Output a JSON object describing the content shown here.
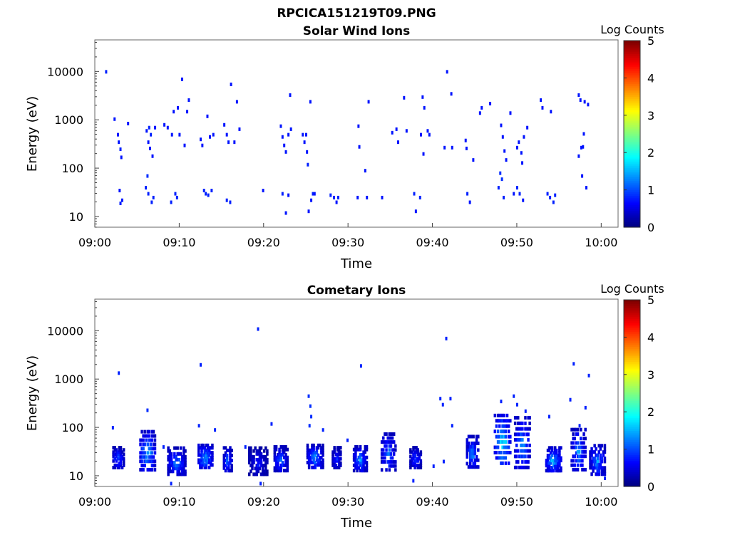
{
  "figure_title": "RPCICA151219T09.PNG",
  "chart_data": [
    {
      "type": "heatmap",
      "title": "Solar Wind Ions",
      "xlabel": "Time",
      "ylabel": "Energy (eV)",
      "yscale": "log",
      "ylim": [
        6,
        45000
      ],
      "xlim": [
        "09:00",
        "10:02"
      ],
      "x_ticks": [
        "09:00",
        "09:10",
        "09:20",
        "09:30",
        "09:40",
        "09:50",
        "10:00"
      ],
      "y_ticks": [
        "10",
        "100",
        "1000",
        "10000"
      ],
      "grid": false,
      "colorbar": {
        "label": "Log Counts",
        "range": [
          0,
          5
        ],
        "ticks": [
          "0",
          "1",
          "2",
          "3",
          "4",
          "5"
        ],
        "colormap": "jet"
      },
      "points": [
        {
          "t": 1.3,
          "e": 10000,
          "c": 0.3
        },
        {
          "t": 2.3,
          "e": 1050,
          "c": 0.2
        },
        {
          "t": 2.7,
          "e": 500,
          "c": 0.2
        },
        {
          "t": 2.8,
          "e": 350,
          "c": 0.2
        },
        {
          "t": 3.0,
          "e": 250,
          "c": 0.3
        },
        {
          "t": 3.1,
          "e": 170,
          "c": 0.2
        },
        {
          "t": 2.9,
          "e": 35,
          "c": 0.2
        },
        {
          "t": 3.2,
          "e": 22,
          "c": 0.2
        },
        {
          "t": 3.0,
          "e": 19,
          "c": 0.3
        },
        {
          "t": 3.9,
          "e": 850,
          "c": 0.2
        },
        {
          "t": 6.0,
          "e": 40,
          "c": 0.3
        },
        {
          "t": 6.2,
          "e": 70,
          "c": 0.4
        },
        {
          "t": 6.3,
          "e": 30,
          "c": 0.3
        },
        {
          "t": 6.1,
          "e": 600,
          "c": 0.2
        },
        {
          "t": 6.4,
          "e": 700,
          "c": 0.3
        },
        {
          "t": 6.6,
          "e": 500,
          "c": 0.3
        },
        {
          "t": 6.3,
          "e": 350,
          "c": 0.2
        },
        {
          "t": 6.5,
          "e": 260,
          "c": 0.2
        },
        {
          "t": 6.7,
          "e": 20,
          "c": 0.3
        },
        {
          "t": 6.9,
          "e": 25,
          "c": 0.3
        },
        {
          "t": 7.1,
          "e": 700,
          "c": 0.2
        },
        {
          "t": 6.8,
          "e": 180,
          "c": 0.2
        },
        {
          "t": 8.2,
          "e": 800,
          "c": 0.2
        },
        {
          "t": 8.6,
          "e": 700,
          "c": 0.2
        },
        {
          "t": 9.1,
          "e": 500,
          "c": 0.2
        },
        {
          "t": 9.3,
          "e": 1500,
          "c": 0.2
        },
        {
          "t": 9.8,
          "e": 1800,
          "c": 0.2
        },
        {
          "t": 10.0,
          "e": 500,
          "c": 0.2
        },
        {
          "t": 10.6,
          "e": 300,
          "c": 0.2
        },
        {
          "t": 9.0,
          "e": 20,
          "c": 0.3
        },
        {
          "t": 9.5,
          "e": 30,
          "c": 0.3
        },
        {
          "t": 9.7,
          "e": 25,
          "c": 0.3
        },
        {
          "t": 10.3,
          "e": 7000,
          "c": 0.2
        },
        {
          "t": 10.9,
          "e": 1500,
          "c": 0.2
        },
        {
          "t": 11.1,
          "e": 2600,
          "c": 0.2
        },
        {
          "t": 12.5,
          "e": 400,
          "c": 0.2
        },
        {
          "t": 12.7,
          "e": 300,
          "c": 0.2
        },
        {
          "t": 12.9,
          "e": 35,
          "c": 0.3
        },
        {
          "t": 13.1,
          "e": 30,
          "c": 0.3
        },
        {
          "t": 13.4,
          "e": 28,
          "c": 0.3
        },
        {
          "t": 13.8,
          "e": 35,
          "c": 0.3
        },
        {
          "t": 13.3,
          "e": 1200,
          "c": 0.2
        },
        {
          "t": 13.6,
          "e": 450,
          "c": 0.2
        },
        {
          "t": 14.0,
          "e": 500,
          "c": 0.2
        },
        {
          "t": 15.3,
          "e": 800,
          "c": 0.2
        },
        {
          "t": 15.6,
          "e": 500,
          "c": 0.2
        },
        {
          "t": 15.8,
          "e": 350,
          "c": 0.2
        },
        {
          "t": 16.1,
          "e": 5500,
          "c": 0.2
        },
        {
          "t": 16.5,
          "e": 350,
          "c": 0.2
        },
        {
          "t": 16.8,
          "e": 2400,
          "c": 0.2
        },
        {
          "t": 15.6,
          "e": 22,
          "c": 0.3
        },
        {
          "t": 16.0,
          "e": 20,
          "c": 0.3
        },
        {
          "t": 17.1,
          "e": 650,
          "c": 0.2
        },
        {
          "t": 19.9,
          "e": 35,
          "c": 0.2
        },
        {
          "t": 22.0,
          "e": 750,
          "c": 0.2
        },
        {
          "t": 22.2,
          "e": 450,
          "c": 0.2
        },
        {
          "t": 22.4,
          "e": 300,
          "c": 0.2
        },
        {
          "t": 22.6,
          "e": 220,
          "c": 0.2
        },
        {
          "t": 22.9,
          "e": 500,
          "c": 0.2
        },
        {
          "t": 23.2,
          "e": 650,
          "c": 0.2
        },
        {
          "t": 22.2,
          "e": 30,
          "c": 0.3
        },
        {
          "t": 22.6,
          "e": 12,
          "c": 0.2
        },
        {
          "t": 22.9,
          "e": 28,
          "c": 0.2
        },
        {
          "t": 23.1,
          "e": 3300,
          "c": 0.2
        },
        {
          "t": 24.6,
          "e": 500,
          "c": 0.2
        },
        {
          "t": 24.8,
          "e": 350,
          "c": 0.2
        },
        {
          "t": 25.1,
          "e": 220,
          "c": 0.2
        },
        {
          "t": 25.2,
          "e": 120,
          "c": 0.3
        },
        {
          "t": 25.0,
          "e": 500,
          "c": 0.2
        },
        {
          "t": 25.5,
          "e": 2400,
          "c": 0.2
        },
        {
          "t": 25.8,
          "e": 30,
          "c": 0.3
        },
        {
          "t": 25.3,
          "e": 13,
          "c": 0.2
        },
        {
          "t": 25.6,
          "e": 22,
          "c": 0.2
        },
        {
          "t": 26.0,
          "e": 30,
          "c": 0.2
        },
        {
          "t": 27.9,
          "e": 28,
          "c": 0.3
        },
        {
          "t": 28.3,
          "e": 25,
          "c": 0.3
        },
        {
          "t": 28.6,
          "e": 20,
          "c": 0.2
        },
        {
          "t": 28.8,
          "e": 25,
          "c": 0.3
        },
        {
          "t": 31.2,
          "e": 750,
          "c": 0.2
        },
        {
          "t": 31.3,
          "e": 280,
          "c": 0.2
        },
        {
          "t": 31.1,
          "e": 25,
          "c": 0.2
        },
        {
          "t": 32.0,
          "e": 90,
          "c": 0.2
        },
        {
          "t": 32.2,
          "e": 25,
          "c": 0.2
        },
        {
          "t": 32.4,
          "e": 2400,
          "c": 0.2
        },
        {
          "t": 34.0,
          "e": 25,
          "c": 0.2
        },
        {
          "t": 35.2,
          "e": 550,
          "c": 0.2
        },
        {
          "t": 35.7,
          "e": 650,
          "c": 0.2
        },
        {
          "t": 35.9,
          "e": 350,
          "c": 0.2
        },
        {
          "t": 36.6,
          "e": 2900,
          "c": 0.2
        },
        {
          "t": 36.9,
          "e": 600,
          "c": 0.2
        },
        {
          "t": 37.8,
          "e": 30,
          "c": 0.3
        },
        {
          "t": 38.0,
          "e": 13,
          "c": 0.2
        },
        {
          "t": 38.5,
          "e": 25,
          "c": 0.3
        },
        {
          "t": 38.6,
          "e": 500,
          "c": 0.2
        },
        {
          "t": 39.0,
          "e": 1800,
          "c": 0.2
        },
        {
          "t": 39.4,
          "e": 600,
          "c": 0.2
        },
        {
          "t": 39.6,
          "e": 500,
          "c": 0.2
        },
        {
          "t": 38.8,
          "e": 3000,
          "c": 0.2
        },
        {
          "t": 38.9,
          "e": 200,
          "c": 0.2
        },
        {
          "t": 41.4,
          "e": 270,
          "c": 0.2
        },
        {
          "t": 41.7,
          "e": 10000,
          "c": 0.2
        },
        {
          "t": 42.2,
          "e": 3500,
          "c": 0.2
        },
        {
          "t": 42.3,
          "e": 270,
          "c": 0.2
        },
        {
          "t": 43.9,
          "e": 380,
          "c": 0.2
        },
        {
          "t": 44.0,
          "e": 260,
          "c": 0.2
        },
        {
          "t": 44.1,
          "e": 30,
          "c": 0.3
        },
        {
          "t": 44.4,
          "e": 20,
          "c": 0.2
        },
        {
          "t": 44.8,
          "e": 150,
          "c": 0.2
        },
        {
          "t": 45.6,
          "e": 1400,
          "c": 0.2
        },
        {
          "t": 45.8,
          "e": 1800,
          "c": 0.2
        },
        {
          "t": 46.8,
          "e": 2200,
          "c": 0.2
        },
        {
          "t": 47.8,
          "e": 40,
          "c": 0.3
        },
        {
          "t": 48.0,
          "e": 80,
          "c": 0.4
        },
        {
          "t": 48.2,
          "e": 60,
          "c": 0.4
        },
        {
          "t": 48.4,
          "e": 25,
          "c": 0.3
        },
        {
          "t": 48.1,
          "e": 780,
          "c": 0.2
        },
        {
          "t": 48.3,
          "e": 450,
          "c": 0.2
        },
        {
          "t": 48.5,
          "e": 230,
          "c": 0.2
        },
        {
          "t": 48.7,
          "e": 150,
          "c": 0.2
        },
        {
          "t": 49.2,
          "e": 1400,
          "c": 0.2
        },
        {
          "t": 49.6,
          "e": 30,
          "c": 0.2
        },
        {
          "t": 50.0,
          "e": 40,
          "c": 0.3
        },
        {
          "t": 50.3,
          "e": 30,
          "c": 0.3
        },
        {
          "t": 50.7,
          "e": 22,
          "c": 0.2
        },
        {
          "t": 50.0,
          "e": 270,
          "c": 0.2
        },
        {
          "t": 50.2,
          "e": 350,
          "c": 0.2
        },
        {
          "t": 50.5,
          "e": 210,
          "c": 0.2
        },
        {
          "t": 50.8,
          "e": 450,
          "c": 0.2
        },
        {
          "t": 51.2,
          "e": 700,
          "c": 0.2
        },
        {
          "t": 50.6,
          "e": 130,
          "c": 0.2
        },
        {
          "t": 52.8,
          "e": 2600,
          "c": 0.2
        },
        {
          "t": 53.0,
          "e": 1800,
          "c": 0.2
        },
        {
          "t": 54.0,
          "e": 1500,
          "c": 0.2
        },
        {
          "t": 53.6,
          "e": 30,
          "c": 0.3
        },
        {
          "t": 53.9,
          "e": 25,
          "c": 0.3
        },
        {
          "t": 54.3,
          "e": 20,
          "c": 0.3
        },
        {
          "t": 54.5,
          "e": 28,
          "c": 0.3
        },
        {
          "t": 57.3,
          "e": 3300,
          "c": 0.2
        },
        {
          "t": 57.5,
          "e": 2600,
          "c": 0.2
        },
        {
          "t": 58.0,
          "e": 2400,
          "c": 0.2
        },
        {
          "t": 57.6,
          "e": 270,
          "c": 0.2
        },
        {
          "t": 57.3,
          "e": 180,
          "c": 0.2
        },
        {
          "t": 57.9,
          "e": 520,
          "c": 0.2
        },
        {
          "t": 57.8,
          "e": 280,
          "c": 0.2
        },
        {
          "t": 58.4,
          "e": 2100,
          "c": 0.2
        },
        {
          "t": 58.2,
          "e": 40,
          "c": 0.2
        },
        {
          "t": 57.7,
          "e": 70,
          "c": 0.2
        }
      ]
    },
    {
      "type": "heatmap",
      "title": "Cometary Ions",
      "xlabel": "Time",
      "ylabel": "Energy (eV)",
      "yscale": "log",
      "ylim": [
        6,
        45000
      ],
      "xlim": [
        "09:00",
        "10:02"
      ],
      "x_ticks": [
        "09:00",
        "09:10",
        "09:20",
        "09:30",
        "09:40",
        "09:50",
        "10:00"
      ],
      "y_ticks": [
        "10",
        "100",
        "1000",
        "10000"
      ],
      "grid": false,
      "colorbar": {
        "label": "Log Counts",
        "range": [
          0,
          5
        ],
        "ticks": [
          "0",
          "1",
          "2",
          "3",
          "4",
          "5"
        ],
        "colormap": "jet"
      },
      "clusters": [
        {
          "t0": 2.1,
          "t1": 3.5,
          "e0": 14,
          "e1": 40,
          "cmax": 1.4
        },
        {
          "t0": 5.3,
          "t1": 7.2,
          "e0": 12,
          "e1": 90,
          "cmax": 2.0
        },
        {
          "t0": 8.6,
          "t1": 10.8,
          "e0": 10,
          "e1": 40,
          "cmax": 1.5
        },
        {
          "t0": 12.2,
          "t1": 14.0,
          "e0": 14,
          "e1": 45,
          "cmax": 1.9
        },
        {
          "t0": 15.2,
          "t1": 16.3,
          "e0": 12,
          "e1": 40,
          "cmax": 1.5
        },
        {
          "t0": 18.2,
          "t1": 20.5,
          "e0": 10,
          "e1": 40,
          "cmax": 0.9
        },
        {
          "t0": 21.2,
          "t1": 22.9,
          "e0": 12,
          "e1": 42,
          "cmax": 1.4
        },
        {
          "t0": 25.1,
          "t1": 27.1,
          "e0": 14,
          "e1": 45,
          "cmax": 1.7
        },
        {
          "t0": 28.1,
          "t1": 29.2,
          "e0": 14,
          "e1": 40,
          "cmax": 1.1
        },
        {
          "t0": 30.6,
          "t1": 32.3,
          "e0": 12,
          "e1": 42,
          "cmax": 1.6
        },
        {
          "t0": 33.9,
          "t1": 35.7,
          "e0": 12,
          "e1": 80,
          "cmax": 1.5
        },
        {
          "t0": 37.3,
          "t1": 38.7,
          "e0": 14,
          "e1": 40,
          "cmax": 1.2
        },
        {
          "t0": 44.0,
          "t1": 45.5,
          "e0": 14,
          "e1": 70,
          "cmax": 1.6
        },
        {
          "t0": 47.3,
          "t1": 49.3,
          "e0": 16,
          "e1": 200,
          "cmax": 2.3
        },
        {
          "t0": 49.7,
          "t1": 51.6,
          "e0": 13,
          "e1": 180,
          "cmax": 1.7
        },
        {
          "t0": 53.4,
          "t1": 55.3,
          "e0": 12,
          "e1": 40,
          "cmax": 1.9
        },
        {
          "t0": 56.4,
          "t1": 58.2,
          "e0": 12,
          "e1": 100,
          "cmax": 1.6
        },
        {
          "t0": 58.6,
          "t1": 60.5,
          "e0": 10,
          "e1": 45,
          "cmax": 1.6
        }
      ],
      "points": [
        {
          "t": 2.8,
          "e": 1350,
          "c": 0.3
        },
        {
          "t": 2.1,
          "e": 100,
          "c": 0.3
        },
        {
          "t": 6.2,
          "e": 230,
          "c": 0.4
        },
        {
          "t": 8.1,
          "e": 40,
          "c": 0.3
        },
        {
          "t": 9.0,
          "e": 7,
          "c": 0.3
        },
        {
          "t": 12.5,
          "e": 2000,
          "c": 0.3
        },
        {
          "t": 12.3,
          "e": 110,
          "c": 0.3
        },
        {
          "t": 14.2,
          "e": 90,
          "c": 0.3
        },
        {
          "t": 17.8,
          "e": 40,
          "c": 0.3
        },
        {
          "t": 19.3,
          "e": 11000,
          "c": 0.3
        },
        {
          "t": 19.6,
          "e": 7,
          "c": 0.3
        },
        {
          "t": 20.9,
          "e": 120,
          "c": 0.3
        },
        {
          "t": 25.3,
          "e": 450,
          "c": 0.4
        },
        {
          "t": 25.5,
          "e": 280,
          "c": 0.4
        },
        {
          "t": 25.6,
          "e": 170,
          "c": 0.4
        },
        {
          "t": 25.4,
          "e": 110,
          "c": 0.4
        },
        {
          "t": 27.0,
          "e": 90,
          "c": 0.3
        },
        {
          "t": 29.9,
          "e": 55,
          "c": 0.3
        },
        {
          "t": 31.5,
          "e": 1900,
          "c": 0.3
        },
        {
          "t": 37.7,
          "e": 8,
          "c": 0.3
        },
        {
          "t": 40.9,
          "e": 400,
          "c": 0.3
        },
        {
          "t": 41.2,
          "e": 300,
          "c": 0.3
        },
        {
          "t": 41.6,
          "e": 7000,
          "c": 0.3
        },
        {
          "t": 42.1,
          "e": 400,
          "c": 0.3
        },
        {
          "t": 42.3,
          "e": 110,
          "c": 0.3
        },
        {
          "t": 41.3,
          "e": 20,
          "c": 0.3
        },
        {
          "t": 40.1,
          "e": 16,
          "c": 0.3
        },
        {
          "t": 48.1,
          "e": 350,
          "c": 0.3
        },
        {
          "t": 49.6,
          "e": 450,
          "c": 0.3
        },
        {
          "t": 50.0,
          "e": 300,
          "c": 0.3
        },
        {
          "t": 51.0,
          "e": 220,
          "c": 0.3
        },
        {
          "t": 53.8,
          "e": 170,
          "c": 0.3
        },
        {
          "t": 54.1,
          "e": 15,
          "c": 0.3
        },
        {
          "t": 56.3,
          "e": 380,
          "c": 0.3
        },
        {
          "t": 56.7,
          "e": 2100,
          "c": 0.3
        },
        {
          "t": 57.4,
          "e": 110,
          "c": 0.3
        },
        {
          "t": 58.1,
          "e": 260,
          "c": 0.3
        },
        {
          "t": 58.5,
          "e": 1200,
          "c": 0.3
        },
        {
          "t": 57.0,
          "e": 30,
          "c": 0.3
        },
        {
          "t": 60.4,
          "e": 9,
          "c": 0.3
        }
      ]
    }
  ]
}
